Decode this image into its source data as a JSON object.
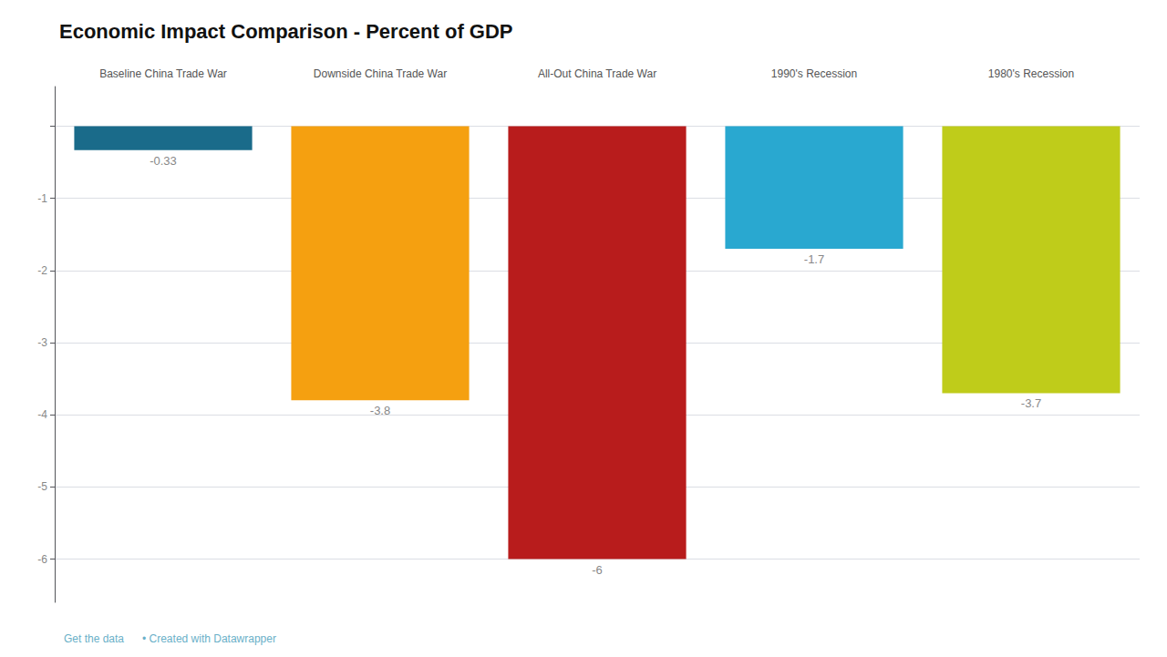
{
  "chart_data": {
    "type": "bar",
    "title": "Economic Impact Comparison - Percent of GDP",
    "categories": [
      "Baseline China Trade War",
      "Downside China Trade War",
      "All-Out China Trade War",
      "1990's Recession",
      "1980's Recession"
    ],
    "values": [
      -0.33,
      -3.8,
      -6.0,
      -1.7,
      -3.7
    ],
    "colors": [
      "#1a6b8a",
      "#f5a010",
      "#b81c1c",
      "#29a8d0",
      "#bfcc1a"
    ],
    "ylim": [
      -6.6,
      0.55
    ],
    "yticks": [
      {
        "value": 0,
        "label": ""
      },
      -1,
      -2,
      -3,
      -4,
      -5,
      -6
    ],
    "grid": true,
    "data_labels": true,
    "annotations": [
      "Get the data",
      "• Created with Datawrapper"
    ]
  }
}
